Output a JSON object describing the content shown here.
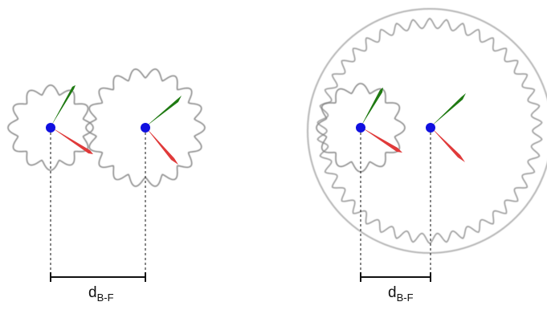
{
  "left_diagram": {
    "distance_label": {
      "main": "d",
      "sub": "B-F"
    }
  },
  "right_diagram": {
    "distance_label": {
      "main": "d",
      "sub": "B-F"
    }
  },
  "colors": {
    "background": "#ffffff",
    "gear_outline": "#8a8a8a",
    "ring_outline": "#9a9a9a",
    "center_dot": "#1010e0",
    "hand_green": "#1f7a12",
    "hand_red": "#e03a3a",
    "dimension_line": "#111111"
  }
}
